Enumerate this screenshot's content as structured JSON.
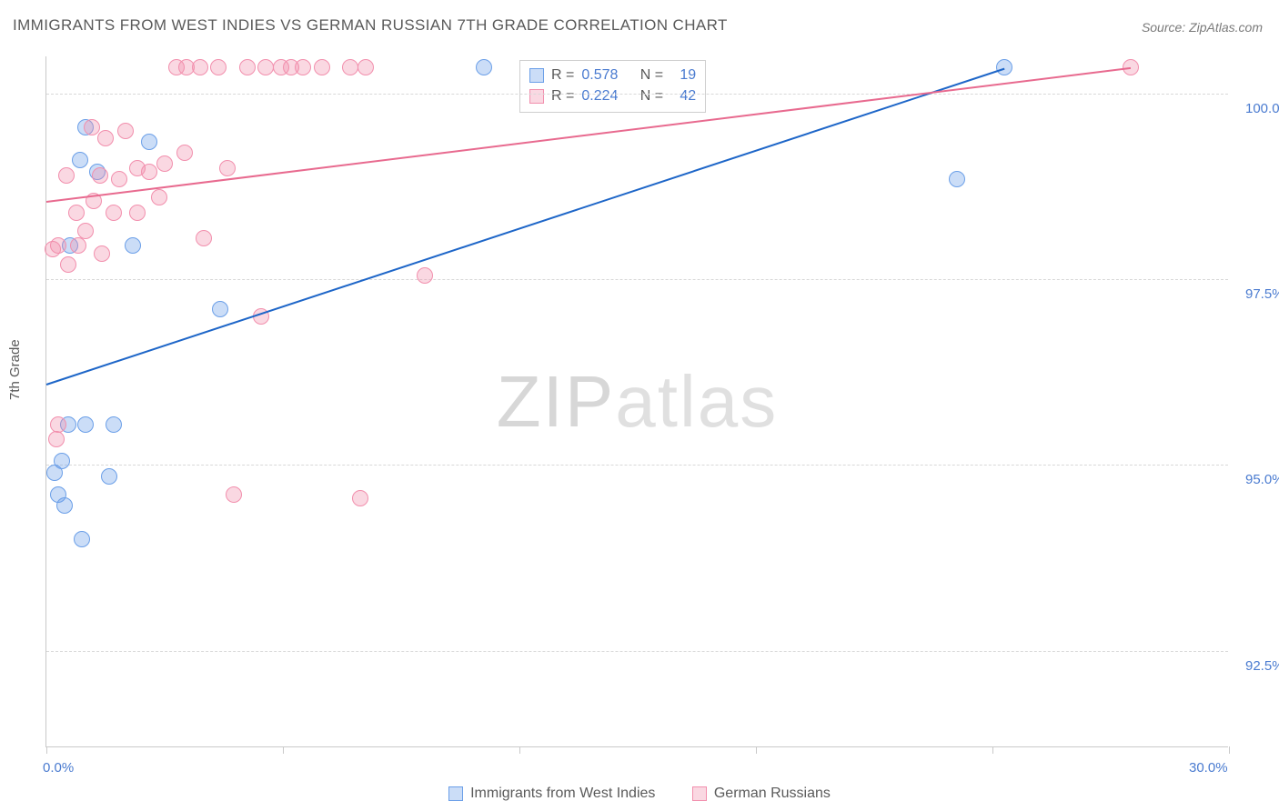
{
  "title": "IMMIGRANTS FROM WEST INDIES VS GERMAN RUSSIAN 7TH GRADE CORRELATION CHART",
  "source": "Source: ZipAtlas.com",
  "watermark_bold": "ZIP",
  "watermark_thin": "atlas",
  "yaxis_label": "7th Grade",
  "chart": {
    "type": "scatter",
    "xlim": [
      0,
      30
    ],
    "ylim": [
      91.2,
      100.5
    ],
    "xtick_positions": [
      0,
      6,
      12,
      18,
      24,
      30
    ],
    "xtick_labels": {
      "0": "0.0%",
      "30": "30.0%"
    },
    "ytick_positions": [
      92.5,
      95.0,
      97.5,
      100.0
    ],
    "ytick_labels": [
      "92.5%",
      "95.0%",
      "97.5%",
      "100.0%"
    ],
    "grid_color": "#d8d8d8",
    "background_color": "#ffffff",
    "point_radius": 9,
    "point_border_width": 1.5,
    "line_width": 2,
    "series": [
      {
        "name": "Immigrants from West Indies",
        "fill": "rgba(107,159,232,0.35)",
        "stroke": "#6b9fe8",
        "line_color": "#1e66c8",
        "R": "0.578",
        "N": "19",
        "trend": {
          "x1": 0,
          "y1": 96.1,
          "x2": 24.3,
          "y2": 100.35
        },
        "points": [
          [
            0.3,
            94.6
          ],
          [
            0.45,
            94.45
          ],
          [
            0.9,
            94.0
          ],
          [
            0.2,
            94.9
          ],
          [
            0.4,
            95.05
          ],
          [
            0.55,
            95.55
          ],
          [
            1.0,
            95.55
          ],
          [
            1.7,
            95.55
          ],
          [
            0.6,
            97.95
          ],
          [
            2.2,
            97.95
          ],
          [
            2.6,
            99.35
          ],
          [
            4.4,
            97.1
          ],
          [
            1.3,
            98.95
          ],
          [
            1.0,
            99.55
          ],
          [
            0.85,
            99.1
          ],
          [
            11.1,
            100.35
          ],
          [
            23.1,
            98.85
          ],
          [
            24.3,
            100.35
          ],
          [
            1.6,
            94.85
          ]
        ]
      },
      {
        "name": "German Russians",
        "fill": "rgba(242,143,173,0.35)",
        "stroke": "#f28fad",
        "line_color": "#e86a8f",
        "R": "0.224",
        "N": "42",
        "trend": {
          "x1": 0,
          "y1": 98.55,
          "x2": 27.5,
          "y2": 100.35
        },
        "points": [
          [
            0.25,
            95.35
          ],
          [
            0.3,
            95.55
          ],
          [
            0.15,
            97.9
          ],
          [
            0.3,
            97.95
          ],
          [
            0.55,
            97.7
          ],
          [
            0.8,
            97.95
          ],
          [
            1.0,
            98.15
          ],
          [
            1.4,
            97.85
          ],
          [
            0.75,
            98.4
          ],
          [
            1.2,
            98.55
          ],
          [
            1.7,
            98.4
          ],
          [
            2.3,
            98.4
          ],
          [
            1.35,
            98.9
          ],
          [
            1.85,
            98.85
          ],
          [
            2.3,
            99.0
          ],
          [
            2.85,
            98.6
          ],
          [
            1.5,
            99.4
          ],
          [
            2.0,
            99.5
          ],
          [
            1.15,
            99.55
          ],
          [
            3.5,
            99.2
          ],
          [
            3.3,
            100.35
          ],
          [
            3.55,
            100.35
          ],
          [
            3.9,
            100.35
          ],
          [
            4.35,
            100.35
          ],
          [
            5.1,
            100.35
          ],
          [
            5.55,
            100.35
          ],
          [
            5.95,
            100.35
          ],
          [
            6.2,
            100.35
          ],
          [
            6.5,
            100.35
          ],
          [
            7.0,
            100.35
          ],
          [
            7.7,
            100.35
          ],
          [
            8.1,
            100.35
          ],
          [
            4.6,
            99.0
          ],
          [
            4.0,
            98.05
          ],
          [
            3.0,
            99.05
          ],
          [
            4.75,
            94.6
          ],
          [
            7.95,
            94.55
          ],
          [
            5.45,
            97.0
          ],
          [
            9.6,
            97.55
          ],
          [
            27.5,
            100.35
          ],
          [
            2.6,
            98.95
          ],
          [
            0.5,
            98.9
          ]
        ]
      }
    ]
  },
  "legend_bottom": {
    "a_label": "Immigrants from West Indies",
    "b_label": "German Russians"
  }
}
